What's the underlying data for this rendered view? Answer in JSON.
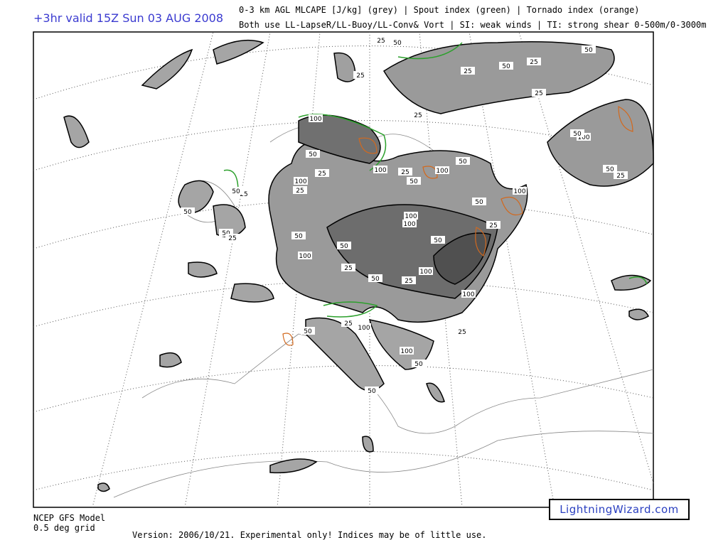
{
  "header": {
    "title": "+3hr valid 15Z Sun 03 AUG 2008",
    "line1": "0-3 km AGL MLCAPE [J/kg] (grey) | Spout index (green) | Tornado index (orange)",
    "line2": "Both use LL-LapseR/LL-Buoy/LL-Conv& Vort | SI: weak winds | TI: strong shear 0-500m/0-3000m"
  },
  "contour_labels": [
    25,
    50,
    50,
    25,
    50,
    25,
    25,
    25,
    25,
    100,
    100,
    50,
    50,
    25,
    100,
    25,
    100,
    50,
    100,
    25,
    50,
    100,
    50,
    25,
    100,
    100,
    25,
    50,
    50,
    50,
    25,
    50,
    100,
    50,
    50,
    100,
    25,
    50,
    25,
    100,
    50,
    25,
    25,
    100,
    50,
    25,
    100,
    50,
    50
  ],
  "footer": {
    "model": "NCEP GFS Model",
    "grid": "0.5 deg grid",
    "version": "Version: 2006/10/21. Experimental only! Indices may be of little use."
  },
  "watermark": "LightningWizard.com"
}
